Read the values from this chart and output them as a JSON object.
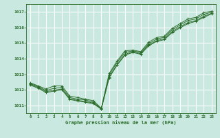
{
  "title": "Graphe pression niveau de la mer (hPa)",
  "bg_color": "#c8e8e0",
  "grid_color": "#ffffff",
  "line_color": "#2d6e2d",
  "xlim": [
    -0.5,
    23.5
  ],
  "ylim": [
    1010.5,
    1017.5
  ],
  "xticks": [
    0,
    1,
    2,
    3,
    4,
    5,
    6,
    7,
    8,
    9,
    10,
    11,
    12,
    13,
    14,
    15,
    16,
    17,
    18,
    19,
    20,
    21,
    22,
    23
  ],
  "yticks": [
    1011,
    1012,
    1013,
    1014,
    1015,
    1016,
    1017
  ],
  "series": [
    [
      1012.45,
      1012.25,
      1012.05,
      1012.25,
      1012.25,
      1011.6,
      1011.5,
      1011.4,
      1011.3,
      1010.82,
      1013.05,
      1013.85,
      1014.5,
      1014.55,
      1014.45,
      1015.05,
      1015.35,
      1015.45,
      1015.95,
      1016.25,
      1016.55,
      1016.65,
      1016.95,
      1017.05
    ],
    [
      1012.4,
      1012.2,
      1011.95,
      1012.1,
      1012.15,
      1011.5,
      1011.4,
      1011.35,
      1011.2,
      1010.79,
      1012.95,
      1013.75,
      1014.4,
      1014.5,
      1014.4,
      1014.95,
      1015.25,
      1015.38,
      1015.85,
      1016.15,
      1016.45,
      1016.55,
      1016.85,
      1016.98
    ],
    [
      1012.35,
      1012.15,
      1011.88,
      1011.98,
      1012.05,
      1011.42,
      1011.32,
      1011.25,
      1011.15,
      1010.78,
      1012.82,
      1013.62,
      1014.28,
      1014.44,
      1014.32,
      1014.88,
      1015.15,
      1015.28,
      1015.75,
      1016.05,
      1016.32,
      1016.45,
      1016.72,
      1016.92
    ],
    [
      1012.3,
      1012.1,
      1011.82,
      1011.92,
      1012.0,
      1011.38,
      1011.28,
      1011.2,
      1011.1,
      1010.76,
      1012.78,
      1013.58,
      1014.22,
      1014.4,
      1014.28,
      1014.82,
      1015.1,
      1015.22,
      1015.68,
      1015.98,
      1016.25,
      1016.4,
      1016.65,
      1016.88
    ]
  ]
}
